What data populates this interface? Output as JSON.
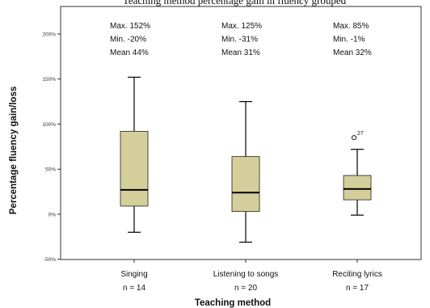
{
  "figure_title": "Teaching method percentage gain in fluency grouped",
  "chart_data": {
    "type": "box",
    "title": "",
    "xlabel": "Teaching method",
    "ylabel": "Percentage fluency gain/loss",
    "ylim": [
      -50,
      200
    ],
    "yticks": [
      {
        "value": 200,
        "label": "200%"
      },
      {
        "value": 150,
        "label": "150%"
      },
      {
        "value": 100,
        "label": "100%"
      },
      {
        "value": 50,
        "label": "50%"
      },
      {
        "value": 0,
        "label": "0%"
      },
      {
        "value": -50,
        "label": "-50%"
      }
    ],
    "grid": false,
    "box_color": "#d4ce9a",
    "groups": [
      {
        "category": "Singing",
        "n_label": "n = 14",
        "stats_text": [
          "Max. 152%",
          "Min. -20%",
          "Mean 44%"
        ],
        "min": -20,
        "q1": 9,
        "median": 27,
        "q3": 92,
        "max": 152,
        "outliers": []
      },
      {
        "category": "Listening to songs",
        "n_label": "n = 20",
        "stats_text": [
          "Max. 125%",
          "Min. -31%",
          "Mean 31%"
        ],
        "min": -31,
        "q1": 3,
        "median": 24,
        "q3": 64,
        "max": 125,
        "outliers": []
      },
      {
        "category": "Reciting lyrics",
        "n_label": "n = 17",
        "stats_text": [
          "Max. 85%",
          "Min. -1%",
          "Mean 32%"
        ],
        "min": -1,
        "q1": 16,
        "median": 28,
        "q3": 43,
        "max": 72,
        "outliers": [
          {
            "value": 85,
            "label": "27"
          }
        ]
      }
    ]
  }
}
